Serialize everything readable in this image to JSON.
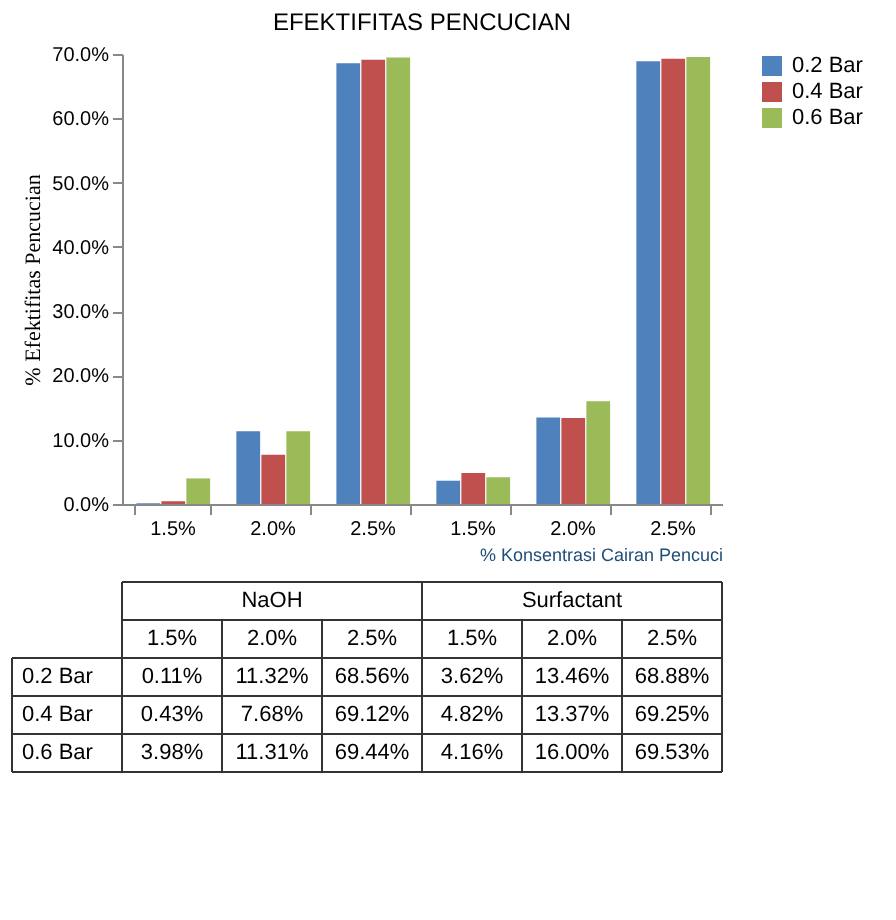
{
  "chart_data": {
    "type": "bar",
    "title": "EFEKTIFITAS PENCUCIAN",
    "ylabel": "% Efektifitas  Pencucian",
    "xlabel": "% Konsentrasi Cairan Pencuci",
    "categories": [
      "1.5%",
      "2.0%",
      "2.5%",
      "1.5%",
      "2.0%",
      "2.5%"
    ],
    "series": [
      {
        "name": "0.2 Bar",
        "color": "#4f81bd",
        "values": [
          0.11,
          11.32,
          68.56,
          3.62,
          13.46,
          68.88
        ],
        "value_labels": [
          "0.11%",
          "11.32%",
          "68.56%",
          "3.62%",
          "13.46%",
          "68.88%"
        ]
      },
      {
        "name": "0.4 Bar",
        "color": "#c0504d",
        "values": [
          0.43,
          7.68,
          69.12,
          4.82,
          13.37,
          69.25
        ],
        "value_labels": [
          "0.43%",
          "7.68%",
          "69.12%",
          "4.82%",
          "13.37%",
          "69.25%"
        ]
      },
      {
        "name": "0.6 Bar",
        "color": "#9bbb59",
        "values": [
          3.98,
          11.31,
          69.44,
          4.16,
          16.0,
          69.53
        ],
        "value_labels": [
          "3.98%",
          "11.31%",
          "69.44%",
          "4.16%",
          "16.00%",
          "69.53%"
        ]
      }
    ],
    "annotations": [
      "NaOH",
      "Surfactant"
    ],
    "ylim": [
      0,
      70
    ],
    "yticks": [
      {
        "value": 0,
        "label": "0.0%"
      },
      {
        "value": 10,
        "label": "10.0%"
      },
      {
        "value": 20,
        "label": "20.0%"
      },
      {
        "value": 30,
        "label": "30.0%"
      },
      {
        "value": 40,
        "label": "40.0%"
      },
      {
        "value": 50,
        "label": "50.0%"
      },
      {
        "value": 60,
        "label": "60.0%"
      },
      {
        "value": 70,
        "label": "70.0%"
      }
    ],
    "grid": false,
    "legend": "right"
  }
}
